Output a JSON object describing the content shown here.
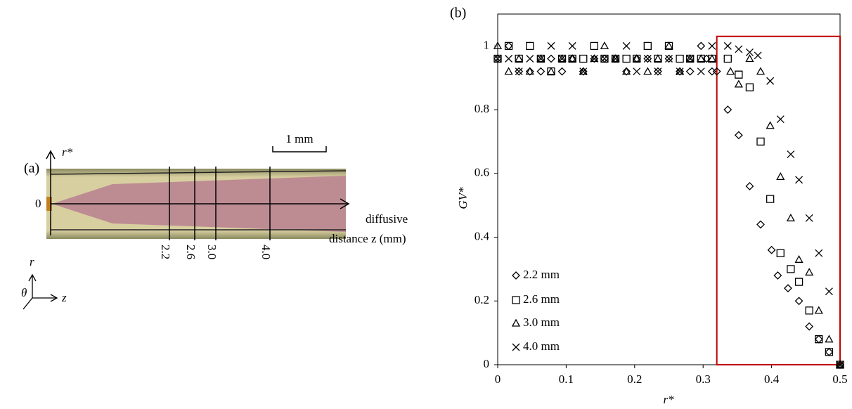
{
  "panel_a": {
    "label": "(a)",
    "axis_label": "r*",
    "scale_bar": "1 mm",
    "origin": "0",
    "z_axis_label": [
      "diffusive",
      "distance z (mm)"
    ],
    "positions": [
      "2.2",
      "2.6",
      "3.0",
      "4.0"
    ],
    "coord_labels": [
      "r",
      "θ",
      "z"
    ]
  },
  "chart_data": {
    "type": "scatter",
    "panel_label": "(b)",
    "x_label": "r*",
    "y_label": "GV*",
    "xlim": [
      0,
      0.5
    ],
    "xticks": [
      0,
      0.1,
      0.2,
      0.3,
      0.4,
      0.5
    ],
    "ylim": [
      0,
      1.1
    ],
    "yticks": [
      0,
      0.2,
      0.4,
      0.6,
      0.8,
      1
    ],
    "grid": false,
    "legend": "lower left",
    "highlight": {
      "xlim": [
        0.32,
        0.5
      ],
      "ylim": [
        0,
        1.03
      ],
      "color": "#c00000"
    },
    "series": [
      {
        "name": "2.2 mm",
        "marker": "diamond",
        "color": "#000000",
        "x": [
          0,
          0.016,
          0.031,
          0.047,
          0.063,
          0.078,
          0.094,
          0.109,
          0.125,
          0.141,
          0.156,
          0.172,
          0.188,
          0.203,
          0.219,
          0.234,
          0.25,
          0.266,
          0.281,
          0.297,
          0.305,
          0.313,
          0.32,
          0.336,
          0.352,
          0.368,
          0.384,
          0.4,
          0.409,
          0.424,
          0.44,
          0.455,
          0.469,
          0.484,
          0.5
        ],
        "values": [
          0.96,
          1,
          0.92,
          0.92,
          0.92,
          0.96,
          0.92,
          0.96,
          0.92,
          0.96,
          0.96,
          0.96,
          0.92,
          0.96,
          0.96,
          0.92,
          0.96,
          0.92,
          0.92,
          1,
          0.96,
          0.92,
          0.92,
          0.8,
          0.72,
          0.56,
          0.44,
          0.36,
          0.28,
          0.24,
          0.2,
          0.12,
          0.08,
          0.04,
          0
        ]
      },
      {
        "name": "2.6 mm",
        "marker": "square",
        "color": "#000000",
        "x": [
          0,
          0.016,
          0.031,
          0.047,
          0.063,
          0.078,
          0.094,
          0.109,
          0.125,
          0.141,
          0.156,
          0.172,
          0.188,
          0.203,
          0.219,
          0.234,
          0.25,
          0.266,
          0.281,
          0.297,
          0.313,
          0.336,
          0.352,
          0.368,
          0.384,
          0.398,
          0.413,
          0.428,
          0.44,
          0.455,
          0.469,
          0.484,
          0.5
        ],
        "values": [
          0.96,
          1,
          0.96,
          1,
          0.96,
          0.92,
          0.96,
          0.96,
          0.96,
          1,
          0.96,
          0.96,
          0.96,
          0.96,
          1,
          0.96,
          1,
          0.96,
          0.96,
          0.96,
          0.96,
          0.96,
          0.91,
          0.87,
          0.7,
          0.52,
          0.35,
          0.3,
          0.26,
          0.17,
          0.08,
          0.04,
          0
        ]
      },
      {
        "name": "3.0 mm",
        "marker": "triangle",
        "color": "#000000",
        "x": [
          0,
          0.016,
          0.031,
          0.047,
          0.063,
          0.078,
          0.094,
          0.109,
          0.125,
          0.141,
          0.156,
          0.172,
          0.188,
          0.203,
          0.219,
          0.234,
          0.25,
          0.266,
          0.281,
          0.297,
          0.313,
          0.34,
          0.352,
          0.368,
          0.384,
          0.398,
          0.413,
          0.428,
          0.44,
          0.455,
          0.469,
          0.484,
          0.5
        ],
        "values": [
          1,
          0.92,
          0.96,
          0.92,
          0.96,
          0.92,
          0.96,
          0.96,
          0.92,
          0.96,
          1,
          0.96,
          0.92,
          0.96,
          0.92,
          0.96,
          1,
          0.92,
          0.96,
          0.96,
          0.96,
          0.92,
          0.88,
          0.96,
          0.92,
          0.75,
          0.59,
          0.46,
          0.33,
          0.29,
          0.17,
          0.08,
          0
        ]
      },
      {
        "name": "4.0 mm",
        "marker": "cross",
        "color": "#000000",
        "x": [
          0,
          0.016,
          0.031,
          0.047,
          0.063,
          0.078,
          0.094,
          0.109,
          0.125,
          0.141,
          0.156,
          0.172,
          0.188,
          0.203,
          0.219,
          0.234,
          0.25,
          0.266,
          0.281,
          0.297,
          0.313,
          0.336,
          0.352,
          0.368,
          0.38,
          0.398,
          0.413,
          0.428,
          0.44,
          0.455,
          0.469,
          0.484,
          0.5
        ],
        "values": [
          0.96,
          0.96,
          0.92,
          0.96,
          0.96,
          1,
          0.96,
          1,
          0.92,
          0.96,
          0.96,
          0.96,
          1,
          0.92,
          0.96,
          0.92,
          0.96,
          0.92,
          0.96,
          0.92,
          1,
          1,
          0.99,
          0.98,
          0.97,
          0.89,
          0.77,
          0.66,
          0.58,
          0.46,
          0.35,
          0.23,
          0
        ]
      }
    ]
  }
}
